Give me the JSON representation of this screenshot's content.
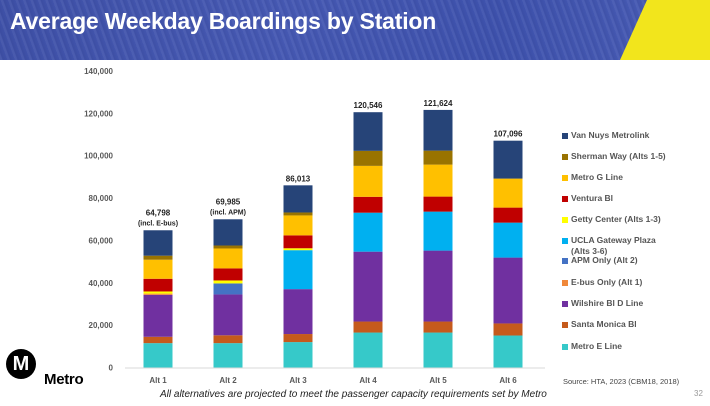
{
  "header": {
    "title": "Average Weekday Boardings by Station"
  },
  "footer": {
    "note": "All alternatives are projected to meet the passenger capacity requirements set by Metro",
    "source": "Source: HTA, 2023 (CBM18, 2018)",
    "page_number": "32",
    "logo_letter": "M",
    "logo_text": "Metro"
  },
  "chart_data": {
    "type": "bar",
    "stacked": true,
    "title": "Average Weekday Boardings by Station",
    "xlabel": "",
    "ylabel": "",
    "ylim": [
      0,
      140000
    ],
    "yticks": [
      0,
      20000,
      40000,
      60000,
      80000,
      100000,
      120000,
      140000
    ],
    "ytick_labels": [
      "0",
      "20,000",
      "40,000",
      "60,000",
      "80,000",
      "100,000",
      "120,000",
      "140,000"
    ],
    "grid": false,
    "legend_position": "right",
    "categories": [
      "Alt 1",
      "Alt 2",
      "Alt 3",
      "Alt 4",
      "Alt 5",
      "Alt 6"
    ],
    "totals": [
      64798,
      69985,
      86013,
      120546,
      121624,
      107096
    ],
    "total_labels": [
      "64,798",
      "69,985",
      "86,013",
      "120,546",
      "121,624",
      "107,096"
    ],
    "total_sublabels": [
      "(incl. E-bus)",
      "(incl. APM)",
      "",
      "",
      "",
      ""
    ],
    "series": [
      {
        "name": "Metro E Line",
        "color": "#36c9c9",
        "values": [
          11500,
          11500,
          12000,
          16500,
          16500,
          15100
        ]
      },
      {
        "name": "Santa Monica Bl",
        "color": "#c55a1c",
        "values": [
          3000,
          3700,
          3800,
          5200,
          5200,
          5700
        ]
      },
      {
        "name": "Wilshire Bl D Line",
        "color": "#7030a0",
        "values": [
          19800,
          19300,
          21200,
          33000,
          33500,
          31100
        ]
      },
      {
        "name": "E-bus Only (Alt 1)",
        "color": "#f0883a",
        "values": [
          600,
          0,
          0,
          0,
          0,
          0
        ]
      },
      {
        "name": "APM Only (Alt 2)",
        "color": "#4472c4",
        "values": [
          0,
          5200,
          0,
          0,
          0,
          0
        ]
      },
      {
        "name": "UCLA Gateway Plaza (Alts 3-6)",
        "color": "#00b0f0",
        "values": [
          0,
          0,
          18400,
          18400,
          18400,
          16500
        ]
      },
      {
        "name": "Getty Center (Alts 1-3)",
        "color": "#ffff00",
        "values": [
          1000,
          1400,
          900,
          0,
          0,
          0
        ]
      },
      {
        "name": "Ventura Bl",
        "color": "#c00000",
        "values": [
          6000,
          5700,
          6100,
          7500,
          7100,
          7100
        ]
      },
      {
        "name": "Metro G Line",
        "color": "#ffc000",
        "values": [
          9000,
          9400,
          9400,
          14600,
          15100,
          13700
        ]
      },
      {
        "name": "Sherman Way (Alts 1-5)",
        "color": "#997300",
        "values": [
          1900,
          1400,
          1400,
          7100,
          6600,
          0
        ]
      },
      {
        "name": "Van Nuys Metrolink",
        "color": "#264478",
        "values": [
          11998,
          12385,
          12813,
          18246,
          19224,
          17896
        ]
      }
    ],
    "legend": [
      {
        "label": "Van Nuys Metrolink",
        "color": "#264478"
      },
      {
        "label": "Sherman Way (Alts 1-5)",
        "color": "#997300"
      },
      {
        "label": "Metro G Line",
        "color": "#ffc000"
      },
      {
        "label": "Ventura Bl",
        "color": "#c00000"
      },
      {
        "label": "Getty Center (Alts 1-3)",
        "color": "#ffff00"
      },
      {
        "label": "UCLA Gateway Plaza",
        "label2": "(Alts 3-6)",
        "color": "#00b0f0"
      },
      {
        "label": "APM Only (Alt 2)",
        "color": "#4472c4"
      },
      {
        "label": "E-bus Only (Alt 1)",
        "color": "#f0883a"
      },
      {
        "label": "Wilshire Bl D Line",
        "color": "#7030a0"
      },
      {
        "label": "Santa Monica Bl",
        "color": "#c55a1c"
      },
      {
        "label": "Metro E Line",
        "color": "#36c9c9"
      }
    ]
  }
}
